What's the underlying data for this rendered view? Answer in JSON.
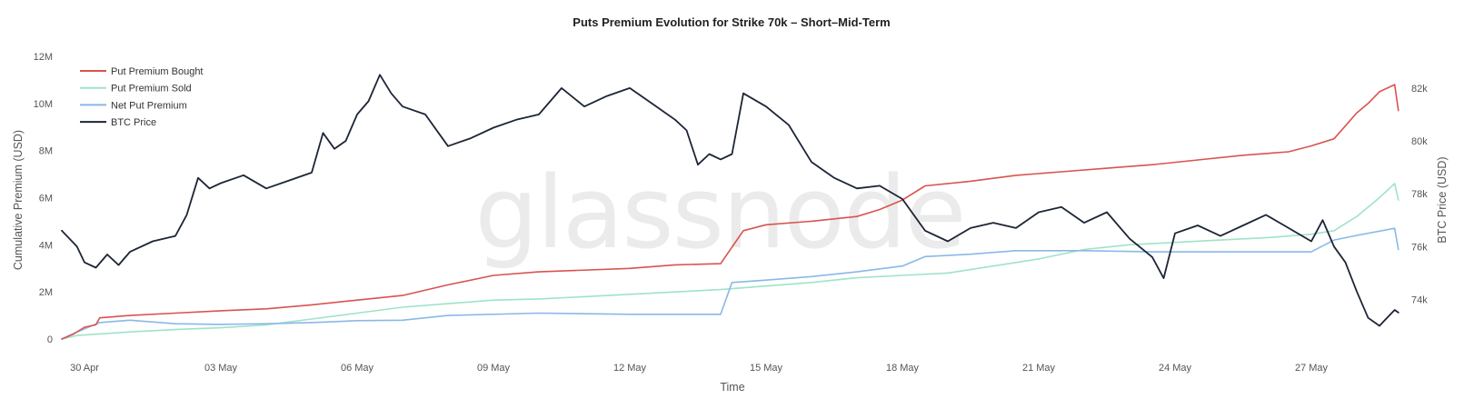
{
  "watermark": "glassnode",
  "chart_data": {
    "type": "line",
    "title": "Puts Premium Evolution for Strike 70k – Short–Mid-Term",
    "xlabel": "Time",
    "ylabel_left": "Cumulative Premium (USD)",
    "ylabel_right": "BTC Price (USD)",
    "x_range": [
      "2025-04-29T12:00",
      "2025-05-29T00:00"
    ],
    "x_ticks": [
      {
        "date": "2025-04-30",
        "label": "30 Apr"
      },
      {
        "date": "2025-05-03",
        "label": "03 May"
      },
      {
        "date": "2025-05-06",
        "label": "06 May"
      },
      {
        "date": "2025-05-09",
        "label": "09 May"
      },
      {
        "date": "2025-05-12",
        "label": "12 May"
      },
      {
        "date": "2025-05-15",
        "label": "15 May"
      },
      {
        "date": "2025-05-18",
        "label": "18 May"
      },
      {
        "date": "2025-05-21",
        "label": "21 May"
      },
      {
        "date": "2025-05-24",
        "label": "24 May"
      },
      {
        "date": "2025-05-27",
        "label": "27 May"
      }
    ],
    "y_left": {
      "range": [
        0,
        12000000
      ],
      "ticks": [
        {
          "v": 0,
          "label": "0"
        },
        {
          "v": 2000000,
          "label": "2M"
        },
        {
          "v": 4000000,
          "label": "4M"
        },
        {
          "v": 6000000,
          "label": "6M"
        },
        {
          "v": 8000000,
          "label": "8M"
        },
        {
          "v": 10000000,
          "label": "10M"
        },
        {
          "v": 12000000,
          "label": "12M"
        }
      ]
    },
    "y_right": {
      "range": [
        72500,
        83200
      ],
      "ticks": [
        {
          "v": 74000,
          "label": "74k"
        },
        {
          "v": 76000,
          "label": "76k"
        },
        {
          "v": 78000,
          "label": "78k"
        },
        {
          "v": 80000,
          "label": "80k"
        },
        {
          "v": 82000,
          "label": "82k"
        }
      ]
    },
    "grid": false,
    "legend_position": "top-left",
    "series": [
      {
        "name": "Put Premium Bought",
        "axis": "left",
        "color": "#d9534f",
        "points": [
          [
            "2025-04-29T12:00",
            0
          ],
          [
            "2025-04-29T18:00",
            200000
          ],
          [
            "2025-04-30T00:00",
            500000
          ],
          [
            "2025-04-30T06:00",
            600000
          ],
          [
            "2025-04-30T08:00",
            900000
          ],
          [
            "2025-05-01T00:00",
            1000000
          ],
          [
            "2025-05-02T00:00",
            1100000
          ],
          [
            "2025-05-03T00:00",
            1200000
          ],
          [
            "2025-05-04T00:00",
            1280000
          ],
          [
            "2025-05-05T00:00",
            1450000
          ],
          [
            "2025-05-06T00:00",
            1650000
          ],
          [
            "2025-05-07T00:00",
            1850000
          ],
          [
            "2025-05-08T00:00",
            2300000
          ],
          [
            "2025-05-09T00:00",
            2700000
          ],
          [
            "2025-05-10T00:00",
            2850000
          ],
          [
            "2025-05-12T00:00",
            3000000
          ],
          [
            "2025-05-13T00:00",
            3150000
          ],
          [
            "2025-05-14T00:00",
            3200000
          ],
          [
            "2025-05-14T12:00",
            4600000
          ],
          [
            "2025-05-15T00:00",
            4850000
          ],
          [
            "2025-05-16T00:00",
            5000000
          ],
          [
            "2025-05-17T00:00",
            5200000
          ],
          [
            "2025-05-17T12:00",
            5500000
          ],
          [
            "2025-05-18T00:00",
            5900000
          ],
          [
            "2025-05-18T12:00",
            6500000
          ],
          [
            "2025-05-19T12:00",
            6700000
          ],
          [
            "2025-05-20T12:00",
            6950000
          ],
          [
            "2025-05-21T12:00",
            7100000
          ],
          [
            "2025-05-22T12:00",
            7250000
          ],
          [
            "2025-05-23T12:00",
            7400000
          ],
          [
            "2025-05-24T12:00",
            7600000
          ],
          [
            "2025-05-25T12:00",
            7800000
          ],
          [
            "2025-05-26T12:00",
            7950000
          ],
          [
            "2025-05-27T00:00",
            8200000
          ],
          [
            "2025-05-27T12:00",
            8500000
          ],
          [
            "2025-05-28T00:00",
            9600000
          ],
          [
            "2025-05-28T06:00",
            10000000
          ],
          [
            "2025-05-28T12:00",
            10500000
          ],
          [
            "2025-05-28T20:00",
            10800000
          ],
          [
            "2025-05-28T22:00",
            9700000
          ]
        ]
      },
      {
        "name": "Put Premium Sold",
        "axis": "left",
        "color": "#9ee3c8",
        "points": [
          [
            "2025-04-29T12:00",
            0
          ],
          [
            "2025-04-29T20:00",
            150000
          ],
          [
            "2025-05-01T00:00",
            300000
          ],
          [
            "2025-05-02T00:00",
            400000
          ],
          [
            "2025-05-03T00:00",
            480000
          ],
          [
            "2025-05-04T00:00",
            600000
          ],
          [
            "2025-05-05T00:00",
            850000
          ],
          [
            "2025-05-06T00:00",
            1100000
          ],
          [
            "2025-05-07T00:00",
            1350000
          ],
          [
            "2025-05-08T00:00",
            1500000
          ],
          [
            "2025-05-09T00:00",
            1650000
          ],
          [
            "2025-05-10T00:00",
            1700000
          ],
          [
            "2025-05-11T00:00",
            1800000
          ],
          [
            "2025-05-12T00:00",
            1900000
          ],
          [
            "2025-05-13T00:00",
            2000000
          ],
          [
            "2025-05-14T00:00",
            2100000
          ],
          [
            "2025-05-15T00:00",
            2250000
          ],
          [
            "2025-05-16T00:00",
            2400000
          ],
          [
            "2025-05-17T00:00",
            2600000
          ],
          [
            "2025-05-18T00:00",
            2700000
          ],
          [
            "2025-05-19T00:00",
            2800000
          ],
          [
            "2025-05-20T00:00",
            3100000
          ],
          [
            "2025-05-21T00:00",
            3400000
          ],
          [
            "2025-05-22T00:00",
            3800000
          ],
          [
            "2025-05-23T00:00",
            4000000
          ],
          [
            "2025-05-24T00:00",
            4100000
          ],
          [
            "2025-05-25T00:00",
            4200000
          ],
          [
            "2025-05-26T00:00",
            4300000
          ],
          [
            "2025-05-27T00:00",
            4450000
          ],
          [
            "2025-05-27T12:00",
            4600000
          ],
          [
            "2025-05-28T00:00",
            5200000
          ],
          [
            "2025-05-28T12:00",
            6000000
          ],
          [
            "2025-05-28T20:00",
            6600000
          ],
          [
            "2025-05-28T22:00",
            5900000
          ]
        ]
      },
      {
        "name": "Net Put Premium",
        "axis": "left",
        "color": "#8ab8e8",
        "points": [
          [
            "2025-04-29T12:00",
            0
          ],
          [
            "2025-04-29T20:00",
            300000
          ],
          [
            "2025-04-30T08:00",
            700000
          ],
          [
            "2025-05-01T00:00",
            800000
          ],
          [
            "2025-05-02T00:00",
            650000
          ],
          [
            "2025-05-03T00:00",
            620000
          ],
          [
            "2025-05-04T00:00",
            650000
          ],
          [
            "2025-05-05T00:00",
            700000
          ],
          [
            "2025-05-06T00:00",
            780000
          ],
          [
            "2025-05-07T00:00",
            800000
          ],
          [
            "2025-05-08T00:00",
            1000000
          ],
          [
            "2025-05-10T00:00",
            1100000
          ],
          [
            "2025-05-12T00:00",
            1050000
          ],
          [
            "2025-05-14T00:00",
            1050000
          ],
          [
            "2025-05-14T06:00",
            2400000
          ],
          [
            "2025-05-15T00:00",
            2500000
          ],
          [
            "2025-05-16T00:00",
            2650000
          ],
          [
            "2025-05-17T00:00",
            2850000
          ],
          [
            "2025-05-18T00:00",
            3100000
          ],
          [
            "2025-05-18T12:00",
            3500000
          ],
          [
            "2025-05-19T12:00",
            3600000
          ],
          [
            "2025-05-20T12:00",
            3750000
          ],
          [
            "2025-05-22T00:00",
            3750000
          ],
          [
            "2025-05-23T12:00",
            3700000
          ],
          [
            "2025-05-25T00:00",
            3700000
          ],
          [
            "2025-05-27T00:00",
            3700000
          ],
          [
            "2025-05-27T12:00",
            4200000
          ],
          [
            "2025-05-28T00:00",
            4400000
          ],
          [
            "2025-05-28T20:00",
            4700000
          ],
          [
            "2025-05-28T22:00",
            3800000
          ]
        ]
      },
      {
        "name": "BTC Price",
        "axis": "right",
        "color": "#1c2536",
        "points": [
          [
            "2025-04-29T12:00",
            76600
          ],
          [
            "2025-04-29T20:00",
            76000
          ],
          [
            "2025-04-30T00:00",
            75400
          ],
          [
            "2025-04-30T06:00",
            75200
          ],
          [
            "2025-04-30T12:00",
            75700
          ],
          [
            "2025-04-30T18:00",
            75300
          ],
          [
            "2025-05-01T00:00",
            75800
          ],
          [
            "2025-05-01T12:00",
            76200
          ],
          [
            "2025-05-02T00:00",
            76400
          ],
          [
            "2025-05-02T06:00",
            77200
          ],
          [
            "2025-05-02T12:00",
            78600
          ],
          [
            "2025-05-02T18:00",
            78200
          ],
          [
            "2025-05-03T00:00",
            78400
          ],
          [
            "2025-05-03T12:00",
            78700
          ],
          [
            "2025-05-04T00:00",
            78200
          ],
          [
            "2025-05-04T12:00",
            78500
          ],
          [
            "2025-05-05T00:00",
            78800
          ],
          [
            "2025-05-05T06:00",
            80300
          ],
          [
            "2025-05-05T12:00",
            79700
          ],
          [
            "2025-05-05T18:00",
            80000
          ],
          [
            "2025-05-06T00:00",
            81000
          ],
          [
            "2025-05-06T06:00",
            81500
          ],
          [
            "2025-05-06T12:00",
            82500
          ],
          [
            "2025-05-06T18:00",
            81800
          ],
          [
            "2025-05-07T00:00",
            81300
          ],
          [
            "2025-05-07T12:00",
            81000
          ],
          [
            "2025-05-08T00:00",
            79800
          ],
          [
            "2025-05-08T12:00",
            80100
          ],
          [
            "2025-05-09T00:00",
            80500
          ],
          [
            "2025-05-09T12:00",
            80800
          ],
          [
            "2025-05-10T00:00",
            81000
          ],
          [
            "2025-05-10T12:00",
            82000
          ],
          [
            "2025-05-11T00:00",
            81300
          ],
          [
            "2025-05-11T12:00",
            81700
          ],
          [
            "2025-05-12T00:00",
            82000
          ],
          [
            "2025-05-12T12:00",
            81400
          ],
          [
            "2025-05-13T00:00",
            80800
          ],
          [
            "2025-05-13T06:00",
            80400
          ],
          [
            "2025-05-13T12:00",
            79100
          ],
          [
            "2025-05-13T18:00",
            79500
          ],
          [
            "2025-05-14T00:00",
            79300
          ],
          [
            "2025-05-14T06:00",
            79500
          ],
          [
            "2025-05-14T12:00",
            81800
          ],
          [
            "2025-05-15T00:00",
            81300
          ],
          [
            "2025-05-15T12:00",
            80600
          ],
          [
            "2025-05-16T00:00",
            79200
          ],
          [
            "2025-05-16T12:00",
            78600
          ],
          [
            "2025-05-17T00:00",
            78200
          ],
          [
            "2025-05-17T12:00",
            78300
          ],
          [
            "2025-05-18T00:00",
            77800
          ],
          [
            "2025-05-18T12:00",
            76600
          ],
          [
            "2025-05-19T00:00",
            76200
          ],
          [
            "2025-05-19T12:00",
            76700
          ],
          [
            "2025-05-20T00:00",
            76900
          ],
          [
            "2025-05-20T12:00",
            76700
          ],
          [
            "2025-05-21T00:00",
            77300
          ],
          [
            "2025-05-21T12:00",
            77500
          ],
          [
            "2025-05-22T00:00",
            76900
          ],
          [
            "2025-05-22T12:00",
            77300
          ],
          [
            "2025-05-23T00:00",
            76300
          ],
          [
            "2025-05-23T12:00",
            75600
          ],
          [
            "2025-05-23T18:00",
            74800
          ],
          [
            "2025-05-24T00:00",
            76500
          ],
          [
            "2025-05-24T12:00",
            76800
          ],
          [
            "2025-05-25T00:00",
            76400
          ],
          [
            "2025-05-25T12:00",
            76800
          ],
          [
            "2025-05-26T00:00",
            77200
          ],
          [
            "2025-05-26T12:00",
            76700
          ],
          [
            "2025-05-27T00:00",
            76200
          ],
          [
            "2025-05-27T06:00",
            77000
          ],
          [
            "2025-05-27T12:00",
            76000
          ],
          [
            "2025-05-27T18:00",
            75400
          ],
          [
            "2025-05-28T00:00",
            74300
          ],
          [
            "2025-05-28T06:00",
            73300
          ],
          [
            "2025-05-28T12:00",
            73000
          ],
          [
            "2025-05-28T16:00",
            73300
          ],
          [
            "2025-05-28T20:00",
            73600
          ],
          [
            "2025-05-28T22:00",
            73500
          ]
        ]
      }
    ]
  }
}
